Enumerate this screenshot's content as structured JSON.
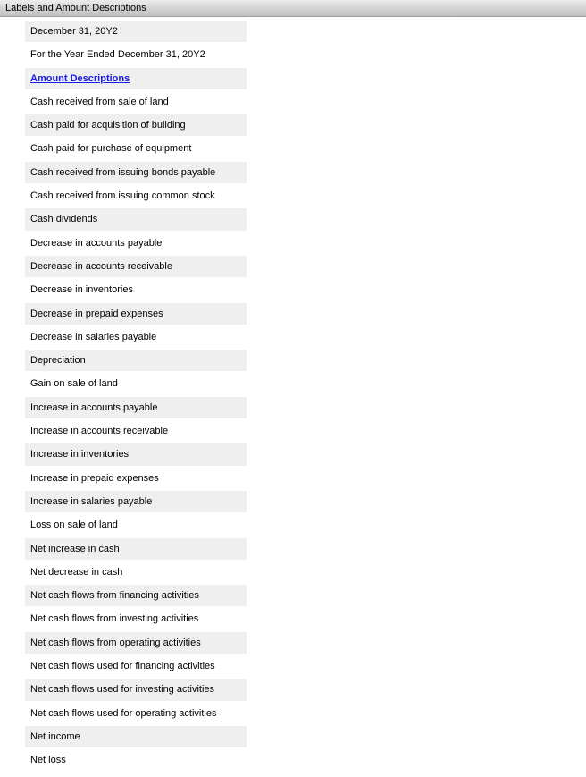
{
  "header": {
    "title": "Labels and Amount Descriptions"
  },
  "colors": {
    "header_gradient_top": "#ececec",
    "header_gradient_mid": "#d4d4d4",
    "header_gradient_bot": "#c0c0c0",
    "shade_bg": "#efefef",
    "section_link": "#1a1ae6"
  },
  "rows": [
    {
      "text": "December 31, 20Y2",
      "shaded": true,
      "section": false
    },
    {
      "text": "For the Year Ended December 31, 20Y2",
      "shaded": false,
      "section": false
    },
    {
      "text": "Amount Descriptions",
      "shaded": true,
      "section": true
    },
    {
      "text": "Cash received from sale of land",
      "shaded": false,
      "section": false
    },
    {
      "text": "Cash paid for acquisition of building",
      "shaded": true,
      "section": false
    },
    {
      "text": "Cash paid for purchase of equipment",
      "shaded": false,
      "section": false
    },
    {
      "text": "Cash received from issuing bonds payable",
      "shaded": true,
      "section": false
    },
    {
      "text": "Cash received from issuing common stock",
      "shaded": false,
      "section": false
    },
    {
      "text": "Cash dividends",
      "shaded": true,
      "section": false
    },
    {
      "text": "Decrease in accounts payable",
      "shaded": false,
      "section": false
    },
    {
      "text": "Decrease in accounts receivable",
      "shaded": true,
      "section": false
    },
    {
      "text": "Decrease in inventories",
      "shaded": false,
      "section": false
    },
    {
      "text": "Decrease in prepaid expenses",
      "shaded": true,
      "section": false
    },
    {
      "text": "Decrease in salaries payable",
      "shaded": false,
      "section": false
    },
    {
      "text": "Depreciation",
      "shaded": true,
      "section": false
    },
    {
      "text": "Gain on sale of land",
      "shaded": false,
      "section": false
    },
    {
      "text": "Increase in accounts payable",
      "shaded": true,
      "section": false
    },
    {
      "text": "Increase in accounts receivable",
      "shaded": false,
      "section": false
    },
    {
      "text": "Increase in inventories",
      "shaded": true,
      "section": false
    },
    {
      "text": "Increase in prepaid expenses",
      "shaded": false,
      "section": false
    },
    {
      "text": "Increase in salaries payable",
      "shaded": true,
      "section": false
    },
    {
      "text": "Loss on sale of land",
      "shaded": false,
      "section": false
    },
    {
      "text": "Net increase in cash",
      "shaded": true,
      "section": false
    },
    {
      "text": "Net decrease in cash",
      "shaded": false,
      "section": false
    },
    {
      "text": "Net cash flows from financing activities",
      "shaded": true,
      "section": false
    },
    {
      "text": "Net cash flows from investing activities",
      "shaded": false,
      "section": false
    },
    {
      "text": "Net cash flows from operating activities",
      "shaded": true,
      "section": false
    },
    {
      "text": "Net cash flows used for financing activities",
      "shaded": false,
      "section": false
    },
    {
      "text": "Net cash flows used for investing activities",
      "shaded": true,
      "section": false
    },
    {
      "text": "Net cash flows used for operating activities",
      "shaded": false,
      "section": false
    },
    {
      "text": "Net income",
      "shaded": true,
      "section": false
    },
    {
      "text": "Net loss",
      "shaded": false,
      "section": false
    }
  ]
}
